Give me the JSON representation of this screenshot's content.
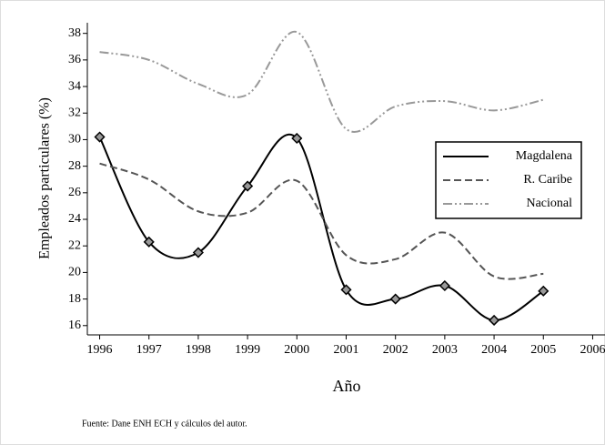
{
  "chart_data": {
    "type": "line",
    "ylabel": "Empleados particulares (%)",
    "xlabel": "Año",
    "note": "Fuente: Dane ENH ECH y cálculos del autor.",
    "x": [
      1996,
      1997,
      1998,
      1999,
      2000,
      2001,
      2002,
      2003,
      2004,
      2005
    ],
    "series": [
      {
        "name": "Magdalena",
        "color": "#000000",
        "dash": "solid",
        "markers": true,
        "values": [
          30.2,
          22.3,
          21.5,
          26.5,
          30.1,
          18.7,
          18.0,
          19.0,
          16.4,
          18.6
        ]
      },
      {
        "name": "R. Caribe",
        "color": "#555555",
        "dash": "dash",
        "markers": false,
        "values": [
          28.2,
          27.0,
          24.6,
          24.5,
          26.9,
          21.3,
          21.0,
          23.0,
          19.7,
          19.9
        ]
      },
      {
        "name": "Nacional",
        "color": "#999999",
        "dash": "dashdot",
        "markers": false,
        "values": [
          36.6,
          36.0,
          34.2,
          33.4,
          38.1,
          30.8,
          32.5,
          32.9,
          32.2,
          33.0
        ]
      }
    ],
    "xlim": [
      1995.75,
      2006.25
    ],
    "xticks": [
      1996,
      1997,
      1998,
      1999,
      2000,
      2001,
      2002,
      2003,
      2004,
      2005,
      2006
    ],
    "ylim": [
      15.3,
      38.8
    ],
    "yticks": [
      16,
      18,
      20,
      22,
      24,
      26,
      28,
      30,
      32,
      34,
      36,
      38
    ],
    "legend": "right"
  }
}
